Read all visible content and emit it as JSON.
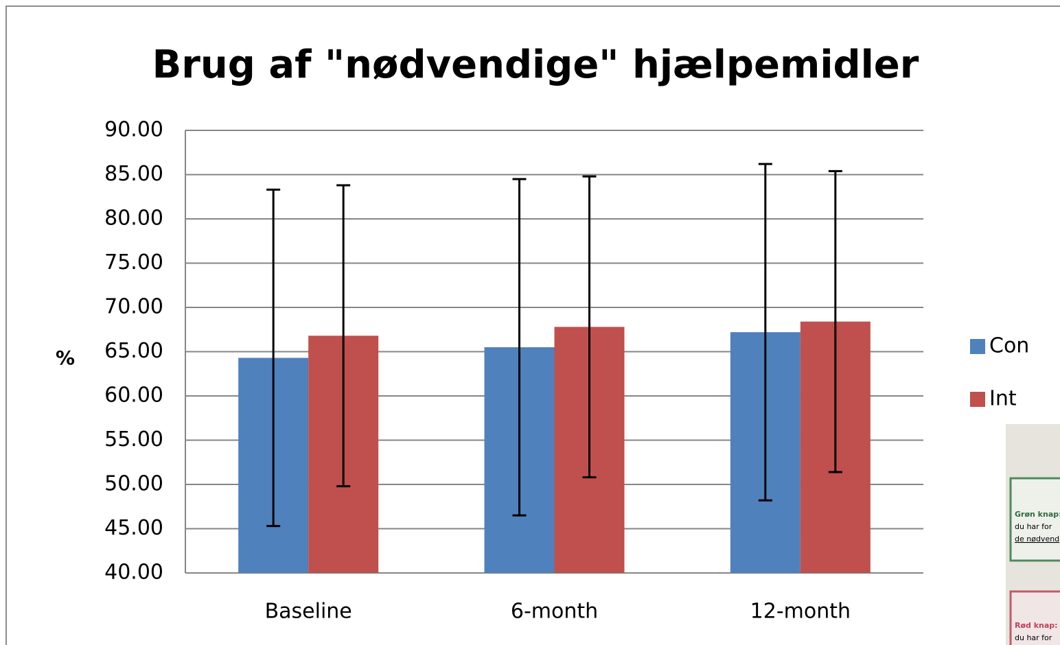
{
  "chart_data": {
    "type": "bar",
    "title": "Brug af \"nødvendige\" hjælpemidler",
    "y_label": "%",
    "categories": [
      "Baseline",
      "6-month",
      "12-month"
    ],
    "series": [
      {
        "name": "Con",
        "color": "#4f81bd",
        "values": [
          64.3,
          65.5,
          67.2
        ],
        "errors": [
          19.0,
          19.0,
          19.0
        ]
      },
      {
        "name": "Int",
        "color": "#c0504d",
        "values": [
          66.8,
          67.8,
          68.4
        ],
        "errors": [
          17.0,
          17.0,
          17.0
        ]
      }
    ],
    "ylim": [
      40,
      90
    ],
    "yticks": [
      {
        "value": 40,
        "label": "40.00"
      },
      {
        "value": 45,
        "label": "45.00"
      },
      {
        "value": 50,
        "label": "50.00"
      },
      {
        "value": 55,
        "label": "55.00"
      },
      {
        "value": 60,
        "label": "60.00"
      },
      {
        "value": 65,
        "label": "65.00"
      },
      {
        "value": 70,
        "label": "70.00"
      },
      {
        "value": 75,
        "label": "75.00"
      },
      {
        "value": 80,
        "label": "80.00"
      },
      {
        "value": 85,
        "label": "85.00"
      },
      {
        "value": 90,
        "label": "90.00"
      }
    ],
    "grid": true,
    "legend": "right"
  },
  "photo": {
    "texts": [
      "Grøn knap:",
      "du har for",
      "de nødvend",
      "Rød knap:",
      "du har for"
    ]
  }
}
